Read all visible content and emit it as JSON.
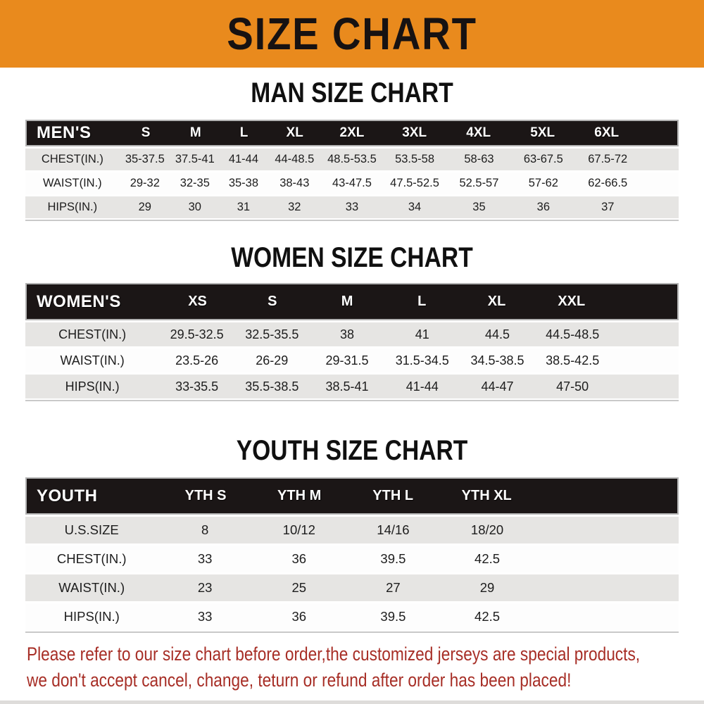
{
  "banner": {
    "title": "SIZE CHART"
  },
  "chart_data": [
    {
      "type": "table",
      "title": "MAN SIZE CHART",
      "header_label": "MEN'S",
      "columns": [
        "S",
        "M",
        "L",
        "XL",
        "2XL",
        "3XL",
        "4XL",
        "5XL",
        "6XL"
      ],
      "rows": [
        {
          "label": "CHEST(IN.)",
          "values": [
            "35-37.5",
            "37.5-41",
            "41-44",
            "44-48.5",
            "48.5-53.5",
            "53.5-58",
            "58-63",
            "63-67.5",
            "67.5-72"
          ]
        },
        {
          "label": "WAIST(IN.)",
          "values": [
            "29-32",
            "32-35",
            "35-38",
            "38-43",
            "43-47.5",
            "47.5-52.5",
            "52.5-57",
            "57-62",
            "62-66.5"
          ]
        },
        {
          "label": "HIPS(IN.)",
          "values": [
            "29",
            "30",
            "31",
            "32",
            "33",
            "34",
            "35",
            "36",
            "37"
          ]
        }
      ]
    },
    {
      "type": "table",
      "title": "WOMEN SIZE CHART",
      "header_label": "WOMEN'S",
      "columns": [
        "XS",
        "S",
        "M",
        "L",
        "XL",
        "XXL"
      ],
      "rows": [
        {
          "label": "CHEST(IN.)",
          "values": [
            "29.5-32.5",
            "32.5-35.5",
            "38",
            "41",
            "44.5",
            "44.5-48.5"
          ]
        },
        {
          "label": "WAIST(IN.)",
          "values": [
            "23.5-26",
            "26-29",
            "29-31.5",
            "31.5-34.5",
            "34.5-38.5",
            "38.5-42.5"
          ]
        },
        {
          "label": "HIPS(IN.)",
          "values": [
            "33-35.5",
            "35.5-38.5",
            "38.5-41",
            "41-44",
            "44-47",
            "47-50"
          ]
        }
      ]
    },
    {
      "type": "table",
      "title": "YOUTH SIZE CHART",
      "header_label": "YOUTH",
      "columns": [
        "YTH S",
        "YTH M",
        "YTH L",
        "YTH XL"
      ],
      "rows": [
        {
          "label": "U.S.SIZE",
          "values": [
            "8",
            "10/12",
            "14/16",
            "18/20"
          ]
        },
        {
          "label": "CHEST(IN.)",
          "values": [
            "33",
            "36",
            "39.5",
            "42.5"
          ]
        },
        {
          "label": "WAIST(IN.)",
          "values": [
            "23",
            "25",
            "27",
            "29"
          ]
        },
        {
          "label": "HIPS(IN.)",
          "values": [
            "33",
            "36",
            "39.5",
            "42.5"
          ]
        }
      ]
    }
  ],
  "disclaimer": {
    "line1": "Please refer to our size chart before order,the customized jerseys are special products,",
    "line2": "we don't accept cancel, change, teturn or refund after order has been placed!"
  },
  "colors": {
    "banner_bg": "#e98a1d",
    "banner_text": "#171212",
    "header_bar_bg": "#1b1616",
    "header_bar_text": "#ffffff",
    "row_alt_bg": "#e6e5e3",
    "row_bg": "#fdfdfd",
    "disclaimer_text": "#a72e26"
  }
}
